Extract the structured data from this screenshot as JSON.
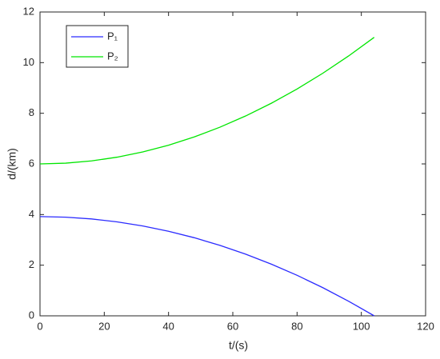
{
  "chart_data": {
    "type": "line",
    "x_label": "t/(s)",
    "y_label": "d/(km)",
    "x": [
      0,
      8,
      16,
      24,
      32,
      40,
      48,
      56,
      64,
      72,
      80,
      88,
      96,
      104
    ],
    "series": [
      {
        "name": "P₁",
        "color": "#2b2bff",
        "values": [
          3.92,
          3.897,
          3.827,
          3.711,
          3.549,
          3.34,
          3.085,
          2.783,
          2.435,
          2.041,
          1.6,
          1.113,
          0.58,
          0
        ]
      },
      {
        "name": "P₂",
        "color": "#00e600",
        "values": [
          6,
          6.03,
          6.118,
          6.266,
          6.473,
          6.74,
          7.065,
          7.45,
          7.894,
          8.396,
          8.959,
          9.58,
          10.26,
          11
        ]
      }
    ],
    "xlim": [
      0,
      120
    ],
    "xticks": [
      0,
      20,
      40,
      60,
      80,
      100,
      120
    ],
    "ylim": [
      0,
      12
    ],
    "yticks": [
      0,
      2,
      4,
      6,
      8,
      10,
      12
    ],
    "grid": false,
    "legend": "upper-left"
  }
}
